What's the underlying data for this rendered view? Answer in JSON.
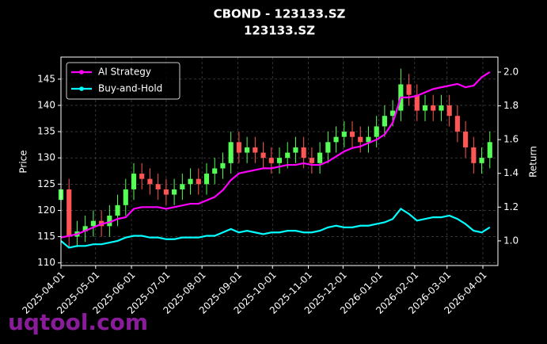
{
  "chart_data": {
    "type": "candlestick",
    "title": "CBOND - 123133.SZ",
    "subtitle": "123133.SZ",
    "watermark": "uqtool.com",
    "ylabel": "Price",
    "y2label": "Return",
    "x": [
      "2025-04-01",
      "2025-04-08",
      "2025-04-15",
      "2025-04-22",
      "2025-04-29",
      "2025-05-06",
      "2025-05-13",
      "2025-05-20",
      "2025-05-27",
      "2025-06-03",
      "2025-06-10",
      "2025-06-17",
      "2025-06-24",
      "2025-07-01",
      "2025-07-08",
      "2025-07-15",
      "2025-07-22",
      "2025-07-29",
      "2025-08-05",
      "2025-08-12",
      "2025-08-19",
      "2025-08-26",
      "2025-09-02",
      "2025-09-09",
      "2025-09-16",
      "2025-09-23",
      "2025-09-30",
      "2025-10-07",
      "2025-10-14",
      "2025-10-21",
      "2025-10-28",
      "2025-11-04",
      "2025-11-11",
      "2025-11-18",
      "2025-11-25",
      "2025-12-02",
      "2025-12-09",
      "2025-12-16",
      "2025-12-23",
      "2025-12-30",
      "2026-01-06",
      "2026-01-13",
      "2026-01-20",
      "2026-01-27",
      "2026-02-03",
      "2026-02-10",
      "2026-02-17",
      "2026-02-24",
      "2026-03-03",
      "2026-03-10",
      "2026-03-17",
      "2026-03-24",
      "2026-03-31",
      "2026-04-07"
    ],
    "open": [
      122,
      124,
      115,
      116,
      117,
      118,
      117,
      119,
      121,
      124,
      127,
      126,
      125,
      124,
      123,
      124,
      125,
      126,
      125,
      127,
      128,
      129,
      133,
      131,
      132,
      131,
      130,
      129,
      130,
      131,
      132,
      130,
      129,
      131,
      133,
      134,
      135,
      134,
      133,
      134,
      136,
      138,
      139,
      144,
      142,
      139,
      140,
      139,
      140,
      138,
      135,
      132,
      129,
      130
    ],
    "high": [
      126,
      126,
      118,
      119,
      120,
      120,
      121,
      123,
      126,
      129,
      129,
      128,
      127,
      126,
      126,
      127,
      128,
      128,
      129,
      130,
      131,
      135,
      135,
      134,
      134,
      133,
      132,
      132,
      133,
      134,
      134,
      132,
      133,
      135,
      136,
      137,
      137,
      136,
      136,
      138,
      140,
      141,
      147,
      146,
      144,
      142,
      142,
      142,
      142,
      140,
      137,
      134,
      132,
      135
    ],
    "low": [
      120,
      113,
      113,
      114,
      115,
      115,
      115,
      117,
      119,
      122,
      124,
      123,
      122,
      121,
      121,
      122,
      123,
      123,
      123,
      125,
      126,
      127,
      129,
      129,
      129,
      128,
      127,
      127,
      128,
      129,
      128,
      127,
      127,
      129,
      131,
      132,
      132,
      131,
      131,
      132,
      134,
      136,
      137,
      140,
      137,
      137,
      137,
      137,
      136,
      133,
      130,
      127,
      127,
      128
    ],
    "close": [
      124,
      115,
      116,
      117,
      118,
      117,
      119,
      121,
      124,
      127,
      126,
      125,
      124,
      123,
      124,
      125,
      126,
      125,
      127,
      128,
      129,
      133,
      131,
      132,
      131,
      130,
      129,
      130,
      131,
      132,
      130,
      129,
      131,
      133,
      134,
      135,
      134,
      133,
      134,
      136,
      138,
      139,
      144,
      142,
      139,
      140,
      139,
      140,
      138,
      135,
      132,
      129,
      130,
      133
    ],
    "up_color": "#55ff55",
    "down_color": "#ff5555",
    "series": [
      {
        "name": "AI Strategy",
        "color": "#ff00ff",
        "axis": "y2",
        "values": [
          1.02,
          1.03,
          1.04,
          1.06,
          1.08,
          1.1,
          1.11,
          1.13,
          1.14,
          1.19,
          1.2,
          1.2,
          1.2,
          1.19,
          1.2,
          1.21,
          1.22,
          1.22,
          1.24,
          1.26,
          1.3,
          1.36,
          1.4,
          1.41,
          1.42,
          1.43,
          1.43,
          1.44,
          1.45,
          1.45,
          1.46,
          1.45,
          1.45,
          1.47,
          1.5,
          1.53,
          1.55,
          1.56,
          1.58,
          1.6,
          1.63,
          1.7,
          1.85,
          1.85,
          1.86,
          1.88,
          1.9,
          1.91,
          1.92,
          1.93,
          1.91,
          1.92,
          1.97,
          2.0
        ]
      },
      {
        "name": "Buy-and-Hold",
        "color": "#00ffff",
        "axis": "y2",
        "values": [
          1.0,
          0.96,
          0.97,
          0.97,
          0.98,
          0.98,
          0.99,
          1.0,
          1.02,
          1.03,
          1.03,
          1.02,
          1.02,
          1.01,
          1.01,
          1.02,
          1.02,
          1.02,
          1.03,
          1.03,
          1.05,
          1.07,
          1.05,
          1.06,
          1.05,
          1.04,
          1.05,
          1.05,
          1.06,
          1.06,
          1.05,
          1.05,
          1.06,
          1.08,
          1.09,
          1.08,
          1.08,
          1.09,
          1.09,
          1.1,
          1.11,
          1.13,
          1.19,
          1.16,
          1.12,
          1.13,
          1.14,
          1.14,
          1.15,
          1.13,
          1.1,
          1.06,
          1.05,
          1.08
        ]
      }
    ],
    "xlim": [
      "2025-04-01",
      "2026-04-14"
    ],
    "xticks": [
      "2025-04-01",
      "2025-05-01",
      "2025-06-01",
      "2025-07-01",
      "2025-08-01",
      "2025-09-01",
      "2025-10-01",
      "2025-11-01",
      "2025-12-01",
      "2026-01-01",
      "2026-02-01",
      "2026-03-01",
      "2026-04-01"
    ],
    "ylim": [
      109.5,
      149.2
    ],
    "yticks": [
      110,
      115,
      120,
      125,
      130,
      135,
      140,
      145
    ],
    "y2lim": [
      0.854,
      2.089
    ],
    "y2ticks": [
      {
        "value": 1,
        "label": "1.0"
      },
      1.2,
      1.4,
      1.6,
      1.8,
      {
        "value": 2,
        "label": "2.0"
      }
    ],
    "grid": true,
    "legend": "upper left"
  }
}
